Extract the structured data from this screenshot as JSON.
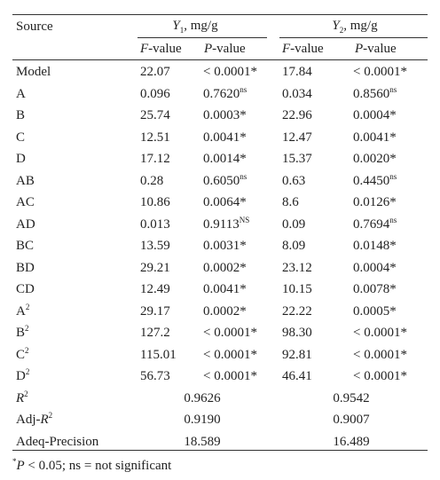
{
  "header": {
    "source": "Source",
    "y1": [
      {
        "italic": "Y"
      },
      {
        "sub": "1"
      },
      ", mg/g"
    ],
    "y2": [
      {
        "italic": "Y"
      },
      {
        "sub": "2"
      },
      ", mg/g"
    ],
    "f_value": [
      {
        "italic": "F"
      },
      "-value"
    ],
    "p_value": [
      {
        "italic": "P"
      },
      "-value"
    ]
  },
  "rows": [
    {
      "source": [
        "Model"
      ],
      "y1_f": [
        "22.07"
      ],
      "y1_p": [
        "< 0.0001*"
      ],
      "y2_f": [
        "17.84"
      ],
      "y2_p": [
        "< 0.0001*"
      ]
    },
    {
      "source": [
        "A"
      ],
      "y1_f": [
        "0.096"
      ],
      "y1_p": [
        "0.7620",
        {
          "sup": "ns"
        }
      ],
      "y2_f": [
        "0.034"
      ],
      "y2_p": [
        "0.8560",
        {
          "sup": "ns"
        }
      ]
    },
    {
      "source": [
        "B"
      ],
      "y1_f": [
        "25.74"
      ],
      "y1_p": [
        "0.0003*"
      ],
      "y2_f": [
        "22.96"
      ],
      "y2_p": [
        "0.0004*"
      ]
    },
    {
      "source": [
        "C"
      ],
      "y1_f": [
        "12.51"
      ],
      "y1_p": [
        "0.0041*"
      ],
      "y2_f": [
        "12.47"
      ],
      "y2_p": [
        "0.0041*"
      ]
    },
    {
      "source": [
        "D"
      ],
      "y1_f": [
        "17.12"
      ],
      "y1_p": [
        "0.0014*"
      ],
      "y2_f": [
        "15.37"
      ],
      "y2_p": [
        "0.0020*"
      ]
    },
    {
      "source": [
        "AB"
      ],
      "y1_f": [
        "0.28"
      ],
      "y1_p": [
        "0.6050",
        {
          "sup": "ns"
        }
      ],
      "y2_f": [
        "0.63"
      ],
      "y2_p": [
        "0.4450",
        {
          "sup": "ns"
        }
      ]
    },
    {
      "source": [
        "AC"
      ],
      "y1_f": [
        "10.86"
      ],
      "y1_p": [
        "0.0064*"
      ],
      "y2_f": [
        "8.6"
      ],
      "y2_p": [
        "0.0126*"
      ]
    },
    {
      "source": [
        "AD"
      ],
      "y1_f": [
        "0.013"
      ],
      "y1_p": [
        "0.9113",
        {
          "sup": "NS"
        }
      ],
      "y2_f": [
        "0.09"
      ],
      "y2_p": [
        "0.7694",
        {
          "sup": "ns"
        }
      ]
    },
    {
      "source": [
        "BC"
      ],
      "y1_f": [
        "13.59"
      ],
      "y1_p": [
        "0.0031*"
      ],
      "y2_f": [
        "8.09"
      ],
      "y2_p": [
        "0.0148*"
      ]
    },
    {
      "source": [
        "BD"
      ],
      "y1_f": [
        "29.21"
      ],
      "y1_p": [
        "0.0002*"
      ],
      "y2_f": [
        "23.12"
      ],
      "y2_p": [
        "0.0004*"
      ]
    },
    {
      "source": [
        "CD"
      ],
      "y1_f": [
        "12.49"
      ],
      "y1_p": [
        "0.0041*"
      ],
      "y2_f": [
        "10.15"
      ],
      "y2_p": [
        "0.0078*"
      ]
    },
    {
      "source": [
        "A",
        {
          "sup": "2"
        }
      ],
      "y1_f": [
        "29.17"
      ],
      "y1_p": [
        "0.0002*"
      ],
      "y2_f": [
        "22.22"
      ],
      "y2_p": [
        "0.0005*"
      ]
    },
    {
      "source": [
        "B",
        {
          "sup": "2"
        }
      ],
      "y1_f": [
        "127.2"
      ],
      "y1_p": [
        "< 0.0001*"
      ],
      "y2_f": [
        "98.30"
      ],
      "y2_p": [
        "< 0.0001*"
      ]
    },
    {
      "source": [
        "C",
        {
          "sup": "2"
        }
      ],
      "y1_f": [
        "115.01"
      ],
      "y1_p": [
        "< 0.0001*"
      ],
      "y2_f": [
        "92.81"
      ],
      "y2_p": [
        "< 0.0001*"
      ]
    },
    {
      "source": [
        "D",
        {
          "sup": "2"
        }
      ],
      "y1_f": [
        "56.73"
      ],
      "y1_p": [
        "< 0.0001*"
      ],
      "y2_f": [
        "46.41"
      ],
      "y2_p": [
        "< 0.0001*"
      ]
    }
  ],
  "fit_rows": [
    {
      "source": [
        {
          "italic": "R"
        },
        {
          "sup": "2"
        }
      ],
      "y1": [
        "0.9626"
      ],
      "y2": [
        "0.9542"
      ]
    },
    {
      "source": [
        "Adj-",
        {
          "italic": "R"
        },
        {
          "sup": "2"
        }
      ],
      "y1": [
        "0.9190"
      ],
      "y2": [
        "0.9007"
      ]
    },
    {
      "source": [
        "Adeq-Precision"
      ],
      "y1": [
        "18.589"
      ],
      "y2": [
        "16.489"
      ]
    }
  ],
  "footnote": [
    {
      "sup": "*"
    },
    {
      "italic": "P"
    },
    " < 0.05; ns = not significant"
  ]
}
